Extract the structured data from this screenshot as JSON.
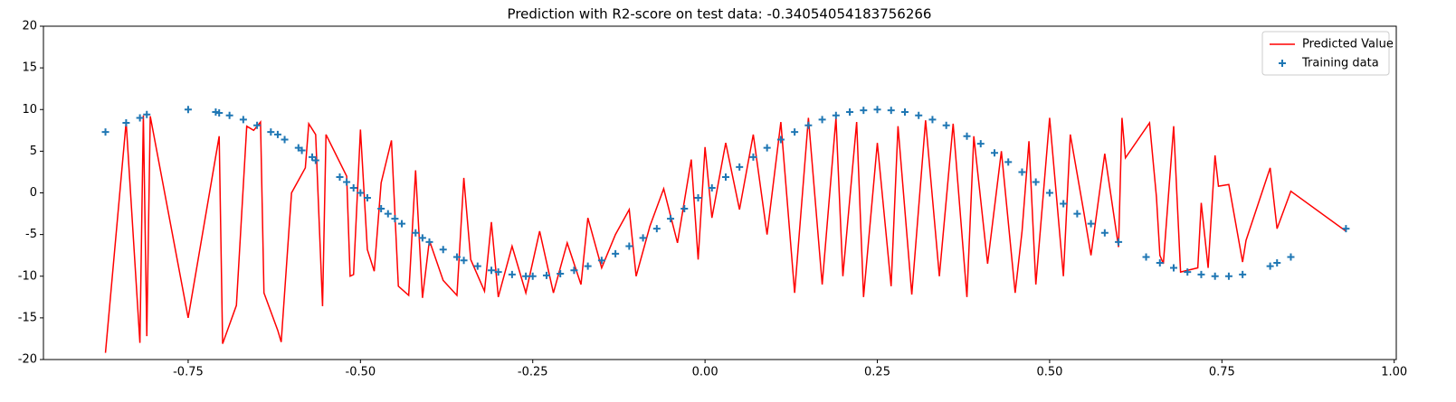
{
  "chart_data": {
    "type": "line",
    "title": "Prediction with R2-score on test data: -0.34054054183756266",
    "xlim": [
      -0.96,
      1.003
    ],
    "ylim": [
      -20,
      20
    ],
    "xticks": [
      -0.75,
      {
        "value": -0.5,
        "label": "-0.50"
      },
      -0.25,
      {
        "value": 0,
        "label": "0.00"
      },
      0.25,
      {
        "value": 0.5,
        "label": "0.50"
      },
      0.75,
      {
        "value": 1,
        "label": "1.00"
      }
    ],
    "yticks": [
      -20,
      -15,
      -10,
      -5,
      0,
      5,
      10,
      15,
      20
    ],
    "legend": "upper right",
    "series": [
      {
        "name": "Predicted Value",
        "type": "line",
        "color": "#ff0000",
        "x": [
          -0.87,
          -0.84,
          -0.82,
          -0.815,
          -0.81,
          -0.805,
          -0.75,
          -0.705,
          -0.7,
          -0.68,
          -0.665,
          -0.655,
          -0.645,
          -0.64,
          -0.62,
          -0.615,
          -0.6,
          -0.58,
          -0.575,
          -0.565,
          -0.555,
          -0.55,
          -0.52,
          -0.515,
          -0.51,
          -0.5,
          -0.49,
          -0.48,
          -0.47,
          -0.455,
          -0.445,
          -0.43,
          -0.42,
          -0.41,
          -0.4,
          -0.38,
          -0.36,
          -0.35,
          -0.34,
          -0.32,
          -0.31,
          -0.3,
          -0.28,
          -0.26,
          -0.24,
          -0.22,
          -0.2,
          -0.18,
          -0.17,
          -0.15,
          -0.13,
          -0.11,
          -0.1,
          -0.08,
          -0.06,
          -0.04,
          -0.02,
          -0.01,
          0,
          0.01,
          0.03,
          0.05,
          0.07,
          0.09,
          0.11,
          0.13,
          0.15,
          0.17,
          0.19,
          0.2,
          0.22,
          0.23,
          0.25,
          0.27,
          0.28,
          0.3,
          0.32,
          0.34,
          0.36,
          0.38,
          0.39,
          0.41,
          0.43,
          0.45,
          0.46,
          0.47,
          0.48,
          0.5,
          0.52,
          0.53,
          0.55,
          0.56,
          0.58,
          0.6,
          0.605,
          0.61,
          0.645,
          0.655,
          0.66,
          0.665,
          0.68,
          0.69,
          0.715,
          0.72,
          0.73,
          0.74,
          0.745,
          0.76,
          0.78,
          0.785,
          0.82,
          0.83,
          0.85,
          0.93
        ],
        "values": [
          -19.2,
          8.5,
          -18,
          9.3,
          -17.2,
          9.2,
          -15,
          6.8,
          -18.1,
          -13.5,
          8,
          7.5,
          8.5,
          -12,
          -16.5,
          -17.9,
          0,
          3,
          8.3,
          7,
          -13.6,
          7,
          2,
          -10,
          -9.8,
          7.6,
          -6.8,
          -9.4,
          1.2,
          6.3,
          -11.2,
          -12.3,
          2.7,
          -12.6,
          -5.7,
          -10.5,
          -12.3,
          1.8,
          -8,
          -11.8,
          -3.5,
          -12.5,
          -6.4,
          -12,
          -4.6,
          -12,
          -6,
          -11,
          -3,
          -9,
          -5,
          -2,
          -10,
          -4,
          0.5,
          -6,
          4,
          -8,
          5.5,
          -3,
          6,
          -2,
          7,
          -5,
          8.5,
          -12,
          9,
          -11,
          9,
          -10,
          8.5,
          -12.5,
          6,
          -11.2,
          8,
          -12.2,
          8.7,
          -10,
          8.3,
          -12.5,
          6.8,
          -8.5,
          5,
          -12,
          -4.6,
          6.2,
          -11,
          9,
          -10,
          7,
          -2.5,
          -7.5,
          4.7,
          -6.5,
          9,
          4.2,
          8.4,
          -0.5,
          -7.5,
          -8.5,
          8,
          -9.5,
          -9,
          -1.2,
          -9,
          4.5,
          0.8,
          1,
          -8.3,
          -5.7,
          3,
          -4.3,
          0.2,
          -4.6
        ]
      },
      {
        "name": "Training data",
        "type": "scatter",
        "color": "#1f77b4",
        "x": [
          -0.87,
          -0.84,
          -0.82,
          -0.81,
          -0.75,
          -0.71,
          -0.705,
          -0.69,
          -0.67,
          -0.65,
          -0.63,
          -0.62,
          -0.61,
          -0.59,
          -0.585,
          -0.57,
          -0.565,
          -0.53,
          -0.52,
          -0.51,
          -0.5,
          -0.49,
          -0.47,
          -0.46,
          -0.45,
          -0.44,
          -0.42,
          -0.41,
          -0.4,
          -0.38,
          -0.36,
          -0.35,
          -0.33,
          -0.31,
          -0.3,
          -0.28,
          -0.26,
          -0.25,
          -0.23,
          -0.21,
          -0.19,
          -0.17,
          -0.15,
          -0.13,
          -0.11,
          -0.09,
          -0.07,
          -0.05,
          -0.03,
          -0.01,
          0.01,
          0.03,
          0.05,
          0.07,
          0.09,
          0.11,
          0.13,
          0.15,
          0.17,
          0.19,
          0.21,
          0.23,
          0.25,
          0.27,
          0.29,
          0.31,
          0.33,
          0.35,
          0.38,
          0.4,
          0.42,
          0.44,
          0.46,
          0.48,
          0.5,
          0.52,
          0.54,
          0.56,
          0.58,
          0.6,
          0.64,
          0.66,
          0.68,
          0.7,
          0.72,
          0.74,
          0.76,
          0.78,
          0.82,
          0.83,
          0.85,
          0.93
        ],
        "values": [
          7.3,
          8.4,
          9,
          9.4,
          10,
          9.7,
          9.6,
          9.3,
          8.8,
          8.1,
          7.3,
          7,
          6.4,
          5.4,
          5.1,
          4.3,
          3.9,
          1.9,
          1.3,
          0.6,
          0,
          -0.6,
          -1.9,
          -2.5,
          -3.1,
          -3.7,
          -4.8,
          -5.4,
          -5.9,
          -6.8,
          -7.7,
          -8.1,
          -8.8,
          -9.3,
          -9.5,
          -9.8,
          -10,
          -10,
          -9.9,
          -9.7,
          -9.3,
          -8.8,
          -8.1,
          -7.3,
          -6.4,
          -5.4,
          -4.3,
          -3.1,
          -1.9,
          -0.6,
          0.6,
          1.9,
          3.1,
          4.3,
          5.4,
          6.4,
          7.3,
          8.1,
          8.8,
          9.3,
          9.7,
          9.9,
          10,
          9.9,
          9.7,
          9.3,
          8.8,
          8.1,
          6.8,
          5.9,
          4.8,
          3.7,
          2.5,
          1.3,
          0,
          -1.3,
          -2.5,
          -3.7,
          -4.8,
          -5.9,
          -7.7,
          -8.4,
          -9,
          -9.5,
          -9.8,
          -10,
          -10,
          -9.8,
          -8.8,
          -8.4,
          -7.7,
          -4.3
        ]
      }
    ]
  }
}
